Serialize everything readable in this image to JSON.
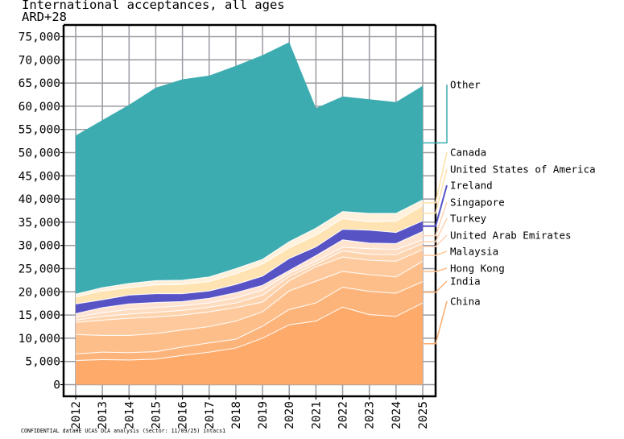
{
  "chart_data": {
    "type": "area",
    "stacked": true,
    "title": "International acceptances, all ages",
    "subtitle": "ARD+28",
    "xlabel": "",
    "ylabel": "",
    "ylim": [
      -1700,
      77500
    ],
    "yticks": [
      0,
      5000,
      10000,
      15000,
      20000,
      25000,
      30000,
      35000,
      40000,
      45000,
      50000,
      55000,
      60000,
      65000,
      70000,
      75000
    ],
    "ytick_labels": [
      "0",
      "5,000",
      "10,000",
      "15,000",
      "20,000",
      "25,000",
      "30,000",
      "35,000",
      "40,000",
      "45,000",
      "50,000",
      "55,000",
      "60,000",
      "65,000",
      "70,000",
      "75,000"
    ],
    "x": [
      "2012",
      "2013",
      "2014",
      "2015",
      "2016",
      "2017",
      "2018",
      "2019",
      "2020",
      "2021",
      "2022",
      "2023",
      "2024",
      "2025"
    ],
    "grid": true,
    "legend": "right, labels with leader lines",
    "series": [
      {
        "name": "China",
        "color": "#FDAA6A",
        "values": [
          5200,
          5400,
          5300,
          5500,
          6300,
          7000,
          7900,
          10000,
          12900,
          13700,
          16700,
          15100,
          14700,
          17600
        ]
      },
      {
        "name": "India",
        "color": "#FDB47A",
        "values": [
          1400,
          1600,
          1600,
          1600,
          1800,
          2000,
          1900,
          2600,
          3300,
          3900,
          4300,
          5000,
          5000,
          4600
        ]
      },
      {
        "name": "Hong Kong",
        "color": "#FDBE8A",
        "values": [
          4200,
          3600,
          3700,
          3900,
          3700,
          3500,
          3900,
          3100,
          4000,
          4700,
          3400,
          3600,
          3500,
          4400
        ]
      },
      {
        "name": "Malaysia",
        "color": "#FECA9D",
        "values": [
          2600,
          3300,
          3700,
          3600,
          3200,
          3200,
          2900,
          2100,
          2200,
          3100,
          3100,
          3100,
          3400,
          2500
        ]
      },
      {
        "name": "United Arab Emirates",
        "color": "#FED4AF",
        "values": [
          500,
          800,
          900,
          1000,
          1000,
          1000,
          1000,
          1500,
          900,
          600,
          1300,
          1300,
          1400,
          1300
        ]
      },
      {
        "name": "Turkey",
        "color": "#FEDCC0",
        "values": [
          600,
          800,
          1000,
          1000,
          1000,
          900,
          1100,
          1100,
          700,
          600,
          800,
          1200,
          1100,
          800
        ]
      },
      {
        "name": "Singapore",
        "color": "#FFE4D2",
        "values": [
          800,
          1100,
          1200,
          1100,
          900,
          1000,
          1100,
          1000,
          600,
          1200,
          1600,
          1200,
          1300,
          1800
        ]
      },
      {
        "name": "Ireland",
        "color": "#5753C5",
        "values": [
          2100,
          1700,
          1900,
          1900,
          1700,
          1600,
          1800,
          2000,
          2600,
          1900,
          2300,
          2800,
          2400,
          2300
        ]
      },
      {
        "name": "United States of America",
        "color": "#FFE3B2",
        "values": [
          1500,
          1900,
          1600,
          1900,
          2000,
          2000,
          2300,
          2600,
          2300,
          2500,
          2300,
          1800,
          2400,
          3300
        ]
      },
      {
        "name": "Canada",
        "color": "#FFF1DC",
        "values": [
          600,
          700,
          900,
          900,
          900,
          1000,
          1100,
          1000,
          1300,
          1500,
          1500,
          1800,
          1700,
          1200
        ]
      },
      {
        "name": "Other",
        "color": "#3DACB0",
        "values": [
          34200,
          36100,
          38500,
          41600,
          43300,
          43400,
          43700,
          44000,
          43000,
          25900,
          24800,
          24600,
          24000,
          24600
        ]
      }
    ]
  },
  "footer": "CONFIDENTIAL dataHE UCAS DCA analysis (Sector: 11/09/25) intacs1"
}
